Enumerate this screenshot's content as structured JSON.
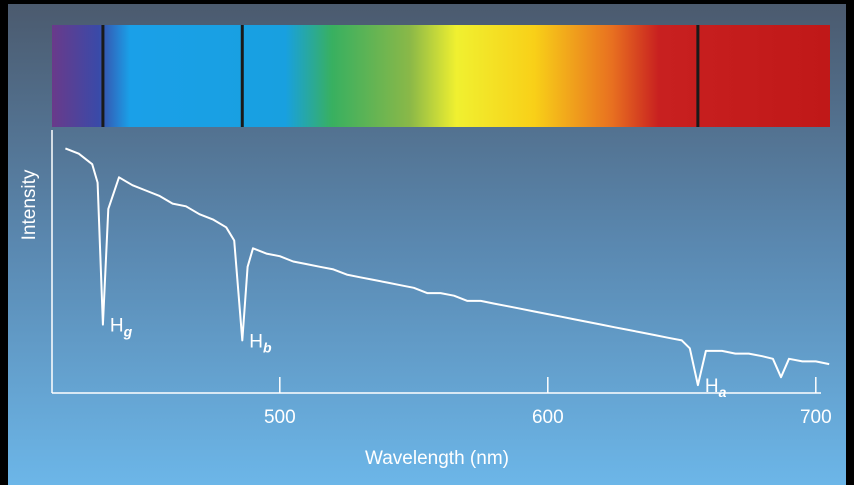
{
  "chart_data": {
    "type": "line",
    "xlabel": "Wavelength (nm)",
    "ylabel": "Intensity",
    "x": [
      420,
      425,
      430,
      432,
      434,
      436,
      440,
      445,
      450,
      455,
      460,
      465,
      470,
      475,
      480,
      483,
      486,
      488,
      490,
      495,
      500,
      505,
      510,
      515,
      520,
      525,
      530,
      535,
      540,
      545,
      550,
      555,
      560,
      565,
      570,
      575,
      580,
      585,
      590,
      595,
      600,
      605,
      610,
      615,
      620,
      625,
      630,
      635,
      640,
      645,
      650,
      653,
      656,
      659,
      665,
      670,
      675,
      680,
      684,
      687,
      690,
      695,
      700,
      705
    ],
    "values": [
      93,
      91,
      87,
      80,
      26,
      70,
      82,
      79,
      77,
      75,
      72,
      71,
      68,
      66,
      63,
      58,
      20,
      48,
      55,
      53,
      52,
      50,
      49,
      48,
      47,
      45,
      44,
      43,
      42,
      41,
      40,
      38,
      38,
      37,
      35,
      35,
      34,
      33,
      32,
      31,
      30,
      29,
      28,
      27,
      26,
      25,
      24,
      23,
      22,
      21,
      20,
      17,
      3,
      16,
      16,
      15,
      15,
      14,
      13,
      6,
      13,
      12,
      12,
      11
    ],
    "color": "#ffffff",
    "xlim": [
      415,
      705
    ],
    "xticks": [
      500,
      600,
      700
    ],
    "ylim": [
      0,
      100
    ],
    "annotations": [
      {
        "label": "H",
        "subscript": "g",
        "x": 434
      },
      {
        "label": "H",
        "subscript": "b",
        "x": 486
      },
      {
        "label": "H",
        "subscript": "a",
        "x": 656
      }
    ]
  }
}
